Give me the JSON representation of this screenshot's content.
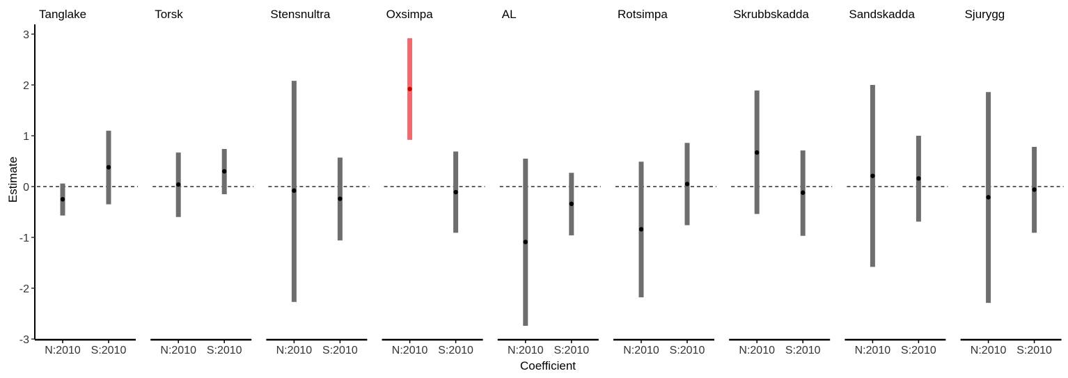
{
  "chart_data": {
    "type": "errorbar",
    "title": "",
    "xlabel": "Coefficient",
    "ylabel": "Estimate",
    "ylim": [
      -3,
      3.2
    ],
    "yticks": [
      "3",
      "2",
      "1",
      "0",
      "-1",
      "-2",
      "-3"
    ],
    "ytick_values": [
      3,
      2,
      1,
      0,
      -1,
      -2,
      -3
    ],
    "categories": [
      "N:2010",
      "S:2010"
    ],
    "reference_line": 0,
    "colors": {
      "normal": "#6e6e6e",
      "highlight": "#ee6a6f",
      "point": "#000000",
      "highlight_point": "#cc0000"
    },
    "panels": [
      {
        "name": "Tanglake",
        "points": [
          {
            "category": "N:2010",
            "estimate": -0.25,
            "lower": -0.57,
            "upper": 0.06,
            "highlight": false
          },
          {
            "category": "S:2010",
            "estimate": 0.38,
            "lower": -0.35,
            "upper": 1.1,
            "highlight": false
          }
        ]
      },
      {
        "name": "Torsk",
        "points": [
          {
            "category": "N:2010",
            "estimate": 0.04,
            "lower": -0.6,
            "upper": 0.67,
            "highlight": false
          },
          {
            "category": "S:2010",
            "estimate": 0.3,
            "lower": -0.15,
            "upper": 0.74,
            "highlight": false
          }
        ]
      },
      {
        "name": "Stensnultra",
        "points": [
          {
            "category": "N:2010",
            "estimate": -0.08,
            "lower": -2.27,
            "upper": 2.08,
            "highlight": false
          },
          {
            "category": "S:2010",
            "estimate": -0.24,
            "lower": -1.06,
            "upper": 0.57,
            "highlight": false
          }
        ]
      },
      {
        "name": "Oxsimpa",
        "points": [
          {
            "category": "N:2010",
            "estimate": 1.92,
            "lower": 0.92,
            "upper": 2.92,
            "highlight": true
          },
          {
            "category": "S:2010",
            "estimate": -0.11,
            "lower": -0.91,
            "upper": 0.69,
            "highlight": false
          }
        ]
      },
      {
        "name": "AL",
        "points": [
          {
            "category": "N:2010",
            "estimate": -1.09,
            "lower": -2.74,
            "upper": 0.55,
            "highlight": false
          },
          {
            "category": "S:2010",
            "estimate": -0.34,
            "lower": -0.96,
            "upper": 0.27,
            "highlight": false
          }
        ]
      },
      {
        "name": "Rotsimpa",
        "points": [
          {
            "category": "N:2010",
            "estimate": -0.84,
            "lower": -2.18,
            "upper": 0.49,
            "highlight": false
          },
          {
            "category": "S:2010",
            "estimate": 0.05,
            "lower": -0.76,
            "upper": 0.86,
            "highlight": false
          }
        ]
      },
      {
        "name": "Skrubbskadda",
        "points": [
          {
            "category": "N:2010",
            "estimate": 0.67,
            "lower": -0.54,
            "upper": 1.89,
            "highlight": false
          },
          {
            "category": "S:2010",
            "estimate": -0.12,
            "lower": -0.97,
            "upper": 0.71,
            "highlight": false
          }
        ]
      },
      {
        "name": "Sandskadda",
        "points": [
          {
            "category": "N:2010",
            "estimate": 0.21,
            "lower": -1.58,
            "upper": 2.0,
            "highlight": false
          },
          {
            "category": "S:2010",
            "estimate": 0.16,
            "lower": -0.69,
            "upper": 1.0,
            "highlight": false
          }
        ]
      },
      {
        "name": "Sjurygg",
        "points": [
          {
            "category": "N:2010",
            "estimate": -0.21,
            "lower": -2.29,
            "upper": 1.86,
            "highlight": false
          },
          {
            "category": "S:2010",
            "estimate": -0.06,
            "lower": -0.91,
            "upper": 0.78,
            "highlight": false
          }
        ]
      }
    ]
  }
}
